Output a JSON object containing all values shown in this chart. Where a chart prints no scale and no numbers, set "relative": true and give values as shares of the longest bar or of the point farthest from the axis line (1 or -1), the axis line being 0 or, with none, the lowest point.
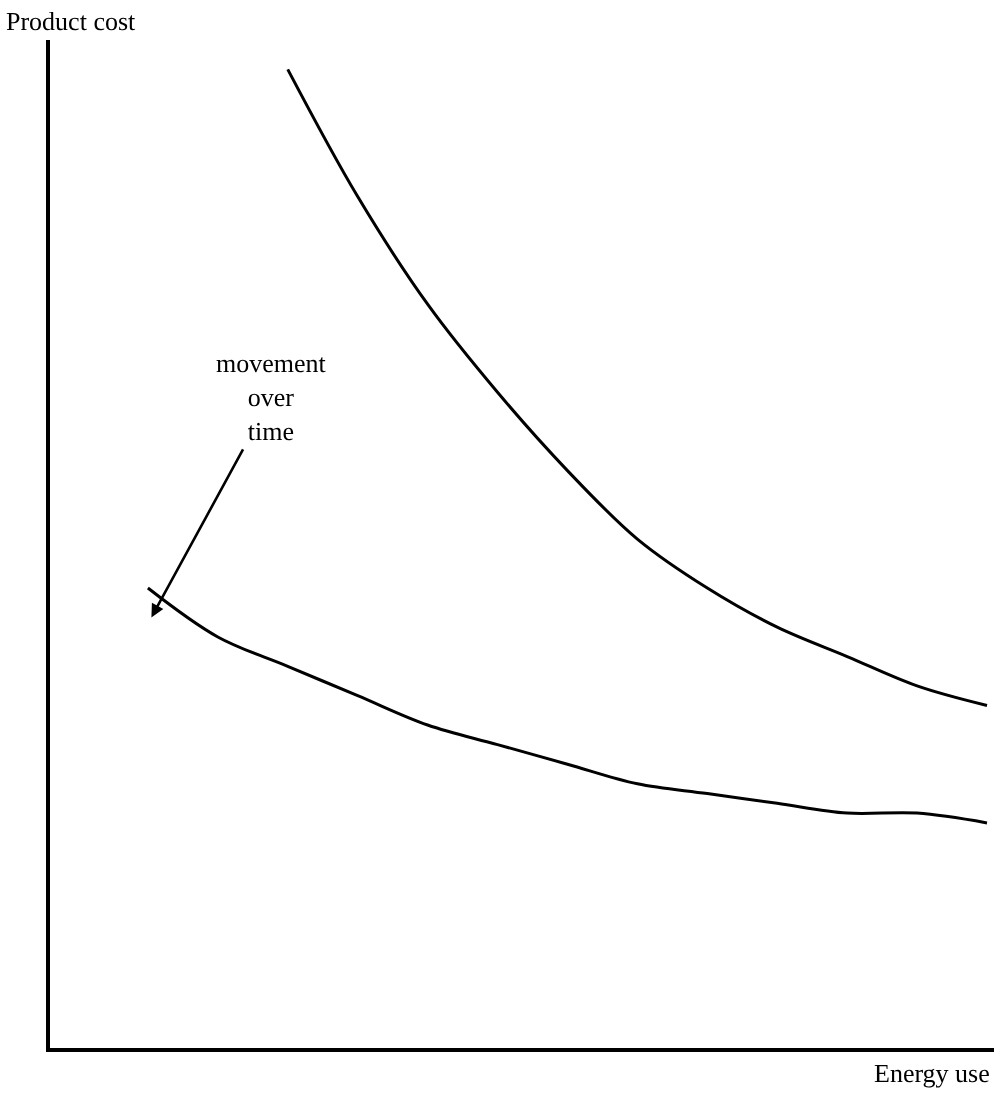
{
  "chart_data": {
    "type": "line",
    "relative": true,
    "xlabel": "Energy use",
    "ylabel": "Product cost",
    "categories": [
      null,
      null,
      null,
      null,
      null,
      null,
      null,
      null,
      null,
      null,
      null,
      null,
      null
    ],
    "series": [
      {
        "color": "#000000",
        "values": [
          null,
          null,
          1,
          0.87,
          0.76,
          0.67,
          0.59,
          0.52,
          0.47,
          0.43,
          0.4,
          0.37,
          0.35
        ]
      },
      {
        "color": "#000000",
        "values": [
          0.47,
          0.42,
          0.39,
          0.36,
          0.33,
          0.31,
          0.29,
          0.27,
          0.26,
          0.25,
          0.24,
          0.24,
          0.23
        ]
      }
    ],
    "annotations": [
      "movement\nover\ntime"
    ],
    "marker": "none",
    "line_style": "solid"
  }
}
